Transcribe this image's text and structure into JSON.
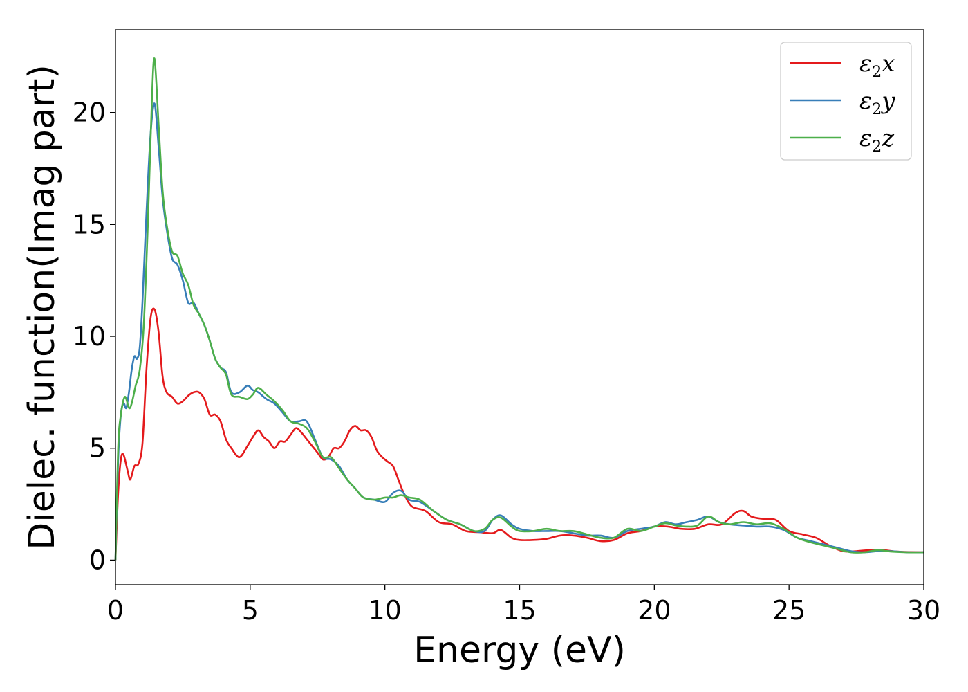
{
  "chart_data": {
    "type": "line",
    "title": "",
    "xlabel": "Energy (eV)",
    "ylabel": "Dielec. function(Imag part)",
    "xlim": [
      0,
      30
    ],
    "ylim": [
      -1.1,
      23.7
    ],
    "xticks": [
      0,
      5,
      10,
      15,
      20,
      25,
      30
    ],
    "yticks": [
      0,
      5,
      10,
      15,
      20
    ],
    "grid": false,
    "legend_position": "top-right",
    "series": [
      {
        "name": "ε2x",
        "symbol": "ε",
        "sub": "2",
        "axis": "x",
        "color": "#e41a1c",
        "x": [
          0,
          0.1,
          0.2,
          0.3,
          0.45,
          0.55,
          0.7,
          0.85,
          1.0,
          1.15,
          1.3,
          1.45,
          1.6,
          1.75,
          1.9,
          2.1,
          2.3,
          2.5,
          2.7,
          2.9,
          3.1,
          3.3,
          3.5,
          3.7,
          3.9,
          4.1,
          4.3,
          4.6,
          4.9,
          5.1,
          5.3,
          5.5,
          5.7,
          5.9,
          6.1,
          6.3,
          6.5,
          6.7,
          6.9,
          7.1,
          7.3,
          7.5,
          7.7,
          7.9,
          8.1,
          8.3,
          8.5,
          8.7,
          8.9,
          9.1,
          9.3,
          9.5,
          9.7,
          9.9,
          10.1,
          10.3,
          10.5,
          10.7,
          11.0,
          11.5,
          12.0,
          12.5,
          13.0,
          13.5,
          14.0,
          14.3,
          14.7,
          15.0,
          15.5,
          16.0,
          16.5,
          17.0,
          17.5,
          18.0,
          18.5,
          19.0,
          19.5,
          20.0,
          20.5,
          21.0,
          21.5,
          22.0,
          22.5,
          23.0,
          23.3,
          23.6,
          24.0,
          24.5,
          25.0,
          25.5,
          26.0,
          26.5,
          27.0,
          27.5,
          28.0,
          28.5,
          29.0,
          29.5,
          30.0
        ],
        "y": [
          0,
          3.0,
          4.5,
          4.7,
          4.0,
          3.6,
          4.2,
          4.3,
          5.2,
          8.5,
          10.8,
          11.2,
          10.2,
          8.2,
          7.5,
          7.3,
          7.0,
          7.1,
          7.35,
          7.5,
          7.5,
          7.2,
          6.5,
          6.5,
          6.2,
          5.4,
          5.0,
          4.6,
          5.1,
          5.5,
          5.8,
          5.5,
          5.3,
          5.0,
          5.3,
          5.3,
          5.6,
          5.9,
          5.7,
          5.4,
          5.1,
          4.8,
          4.5,
          4.6,
          5.0,
          5.0,
          5.3,
          5.8,
          6.0,
          5.8,
          5.8,
          5.5,
          4.9,
          4.6,
          4.4,
          4.2,
          3.6,
          3.0,
          2.4,
          2.2,
          1.7,
          1.6,
          1.3,
          1.25,
          1.2,
          1.35,
          1.0,
          0.9,
          0.9,
          0.95,
          1.1,
          1.1,
          1.0,
          0.85,
          0.9,
          1.2,
          1.3,
          1.5,
          1.5,
          1.4,
          1.4,
          1.6,
          1.6,
          2.1,
          2.2,
          1.95,
          1.85,
          1.8,
          1.3,
          1.15,
          1.0,
          0.65,
          0.4,
          0.4,
          0.45,
          0.45,
          0.38,
          0.36,
          0.35
        ]
      },
      {
        "name": "ε2y",
        "symbol": "ε",
        "sub": "2",
        "axis": "y",
        "color": "#377eb8",
        "x": [
          0,
          0.1,
          0.2,
          0.3,
          0.4,
          0.5,
          0.6,
          0.7,
          0.8,
          0.9,
          1.0,
          1.15,
          1.3,
          1.45,
          1.6,
          1.75,
          1.9,
          2.1,
          2.3,
          2.5,
          2.7,
          2.9,
          3.1,
          3.3,
          3.5,
          3.7,
          3.9,
          4.1,
          4.3,
          4.6,
          4.9,
          5.1,
          5.3,
          5.6,
          5.9,
          6.2,
          6.5,
          6.8,
          7.1,
          7.4,
          7.7,
          8.0,
          8.3,
          8.6,
          8.9,
          9.2,
          9.6,
          10.0,
          10.3,
          10.6,
          10.9,
          11.3,
          11.8,
          12.3,
          12.8,
          13.3,
          13.7,
          14.0,
          14.3,
          14.7,
          15.0,
          15.5,
          16.0,
          16.5,
          17.0,
          17.5,
          18.0,
          18.5,
          19.0,
          19.5,
          20.0,
          20.4,
          20.8,
          21.2,
          21.6,
          22.0,
          22.4,
          22.8,
          23.3,
          23.8,
          24.3,
          24.8,
          25.3,
          25.8,
          26.3,
          26.8,
          27.3,
          27.8,
          28.3,
          28.8,
          29.4,
          30.0
        ],
        "y": [
          0,
          4.5,
          6.5,
          7.0,
          6.8,
          7.5,
          8.5,
          9.1,
          9.0,
          9.5,
          11.5,
          15.5,
          19.0,
          20.4,
          18.5,
          16.2,
          14.8,
          13.5,
          13.2,
          12.5,
          11.5,
          11.5,
          11.0,
          10.5,
          9.8,
          9.0,
          8.6,
          8.4,
          7.5,
          7.5,
          7.8,
          7.6,
          7.5,
          7.2,
          7.0,
          6.6,
          6.2,
          6.2,
          6.2,
          5.4,
          4.6,
          4.5,
          4.2,
          3.6,
          3.2,
          2.8,
          2.7,
          2.6,
          3.0,
          3.1,
          2.7,
          2.6,
          2.2,
          1.8,
          1.6,
          1.3,
          1.3,
          1.8,
          2.0,
          1.6,
          1.4,
          1.3,
          1.3,
          1.3,
          1.2,
          1.1,
          1.1,
          1.0,
          1.3,
          1.4,
          1.5,
          1.7,
          1.6,
          1.7,
          1.8,
          1.95,
          1.7,
          1.6,
          1.55,
          1.5,
          1.5,
          1.35,
          1.0,
          0.85,
          0.7,
          0.55,
          0.4,
          0.35,
          0.4,
          0.4,
          0.35,
          0.35
        ]
      },
      {
        "name": "ε2z",
        "symbol": "ε",
        "sub": "2",
        "axis": "z",
        "color": "#4daf4a",
        "x": [
          0,
          0.1,
          0.2,
          0.35,
          0.5,
          0.6,
          0.75,
          0.9,
          1.05,
          1.2,
          1.35,
          1.45,
          1.6,
          1.75,
          1.9,
          2.1,
          2.3,
          2.5,
          2.7,
          2.9,
          3.1,
          3.3,
          3.5,
          3.7,
          3.9,
          4.1,
          4.3,
          4.6,
          4.9,
          5.1,
          5.3,
          5.6,
          5.9,
          6.2,
          6.5,
          6.8,
          7.1,
          7.4,
          7.7,
          8.0,
          8.3,
          8.6,
          8.9,
          9.2,
          9.6,
          10.0,
          10.3,
          10.6,
          10.9,
          11.3,
          11.8,
          12.3,
          12.8,
          13.3,
          13.7,
          14.0,
          14.3,
          14.7,
          15.0,
          15.5,
          16.0,
          16.5,
          17.0,
          17.5,
          18.0,
          18.5,
          19.0,
          19.5,
          20.0,
          20.4,
          20.8,
          21.2,
          21.6,
          22.0,
          22.4,
          22.8,
          23.3,
          23.8,
          24.3,
          24.8,
          25.3,
          25.8,
          26.3,
          26.8,
          27.3,
          27.8,
          28.3,
          28.8,
          29.4,
          30.0
        ],
        "y": [
          0,
          5.0,
          6.5,
          7.3,
          6.8,
          7.0,
          7.8,
          8.5,
          10.5,
          15.0,
          20.5,
          22.4,
          19.5,
          16.5,
          15.0,
          13.8,
          13.6,
          12.8,
          12.3,
          11.4,
          11.0,
          10.5,
          9.8,
          9.0,
          8.6,
          8.3,
          7.4,
          7.3,
          7.2,
          7.4,
          7.7,
          7.4,
          7.1,
          6.7,
          6.2,
          6.1,
          5.9,
          5.3,
          4.6,
          4.6,
          4.1,
          3.6,
          3.2,
          2.8,
          2.7,
          2.8,
          2.8,
          2.9,
          2.8,
          2.7,
          2.2,
          1.8,
          1.6,
          1.3,
          1.4,
          1.8,
          1.9,
          1.5,
          1.3,
          1.3,
          1.4,
          1.3,
          1.3,
          1.15,
          1.0,
          1.0,
          1.4,
          1.3,
          1.5,
          1.65,
          1.55,
          1.5,
          1.55,
          1.95,
          1.7,
          1.6,
          1.7,
          1.6,
          1.65,
          1.4,
          1.0,
          0.8,
          0.65,
          0.5,
          0.35,
          0.35,
          0.45,
          0.38,
          0.35,
          0.35
        ]
      }
    ]
  }
}
